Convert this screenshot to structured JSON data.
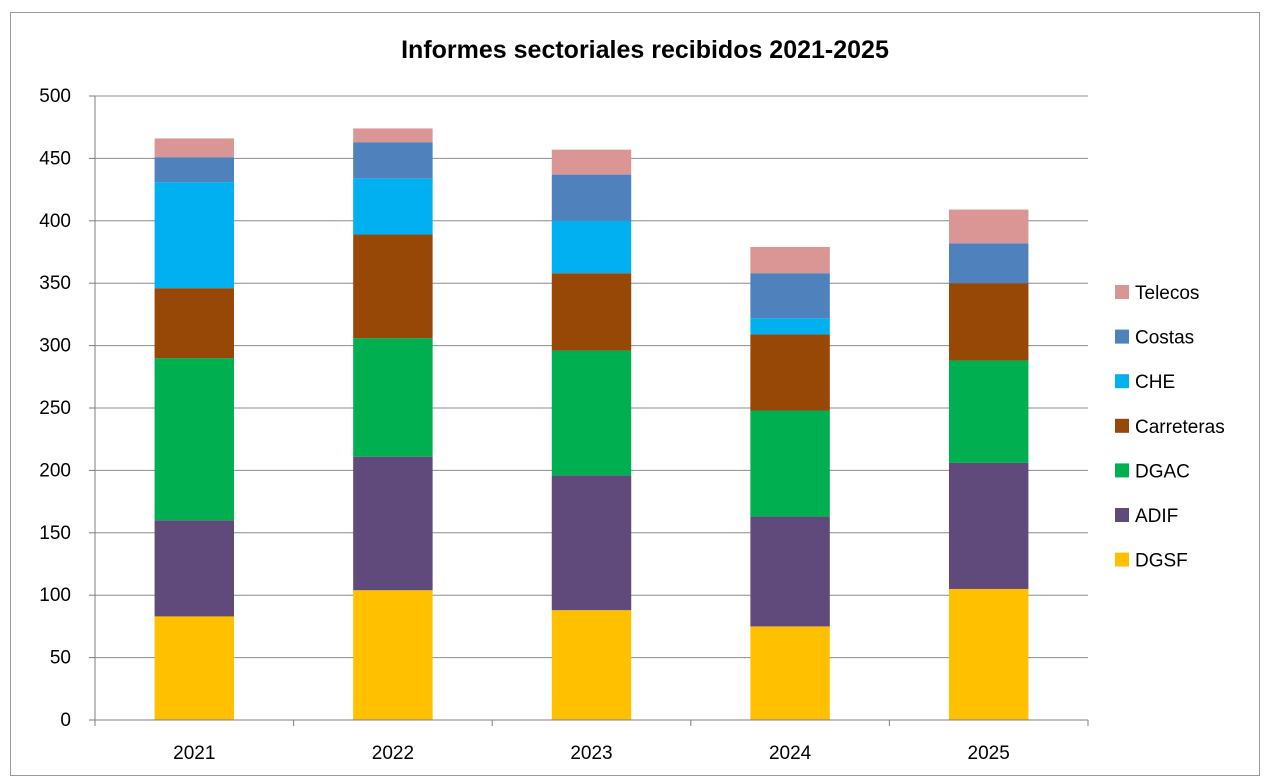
{
  "chart_data": {
    "type": "bar",
    "stacked": true,
    "title": "Informes sectoriales recibidos 2021-2025",
    "xlabel": "",
    "ylabel": "",
    "ylim": [
      0,
      500
    ],
    "yticks": [
      "0",
      "50",
      "100",
      "150",
      "200",
      "250",
      "300",
      "350",
      "400",
      "450",
      "500"
    ],
    "grid": true,
    "legend_position": "right",
    "categories": [
      "2021",
      "2022",
      "2023",
      "2024",
      "2025"
    ],
    "series": [
      {
        "name": "DGSF",
        "color": "#ffc000",
        "values": [
          83,
          104,
          88,
          75,
          105
        ]
      },
      {
        "name": "ADIF",
        "color": "#604a7b",
        "values": [
          77,
          107,
          108,
          88,
          101
        ]
      },
      {
        "name": "DGAC",
        "color": "#00b050",
        "values": [
          130,
          95,
          100,
          85,
          82
        ]
      },
      {
        "name": "Carreteras",
        "color": "#974706",
        "values": [
          56,
          83,
          62,
          61,
          62
        ]
      },
      {
        "name": "CHE",
        "color": "#00b0f0",
        "values": [
          85,
          45,
          42,
          13,
          0
        ]
      },
      {
        "name": "Costas",
        "color": "#4f81bd",
        "values": [
          20,
          29,
          37,
          36,
          32
        ]
      },
      {
        "name": "Telecos",
        "color": "#d99694",
        "values": [
          15,
          11,
          20,
          21,
          27
        ]
      }
    ]
  }
}
